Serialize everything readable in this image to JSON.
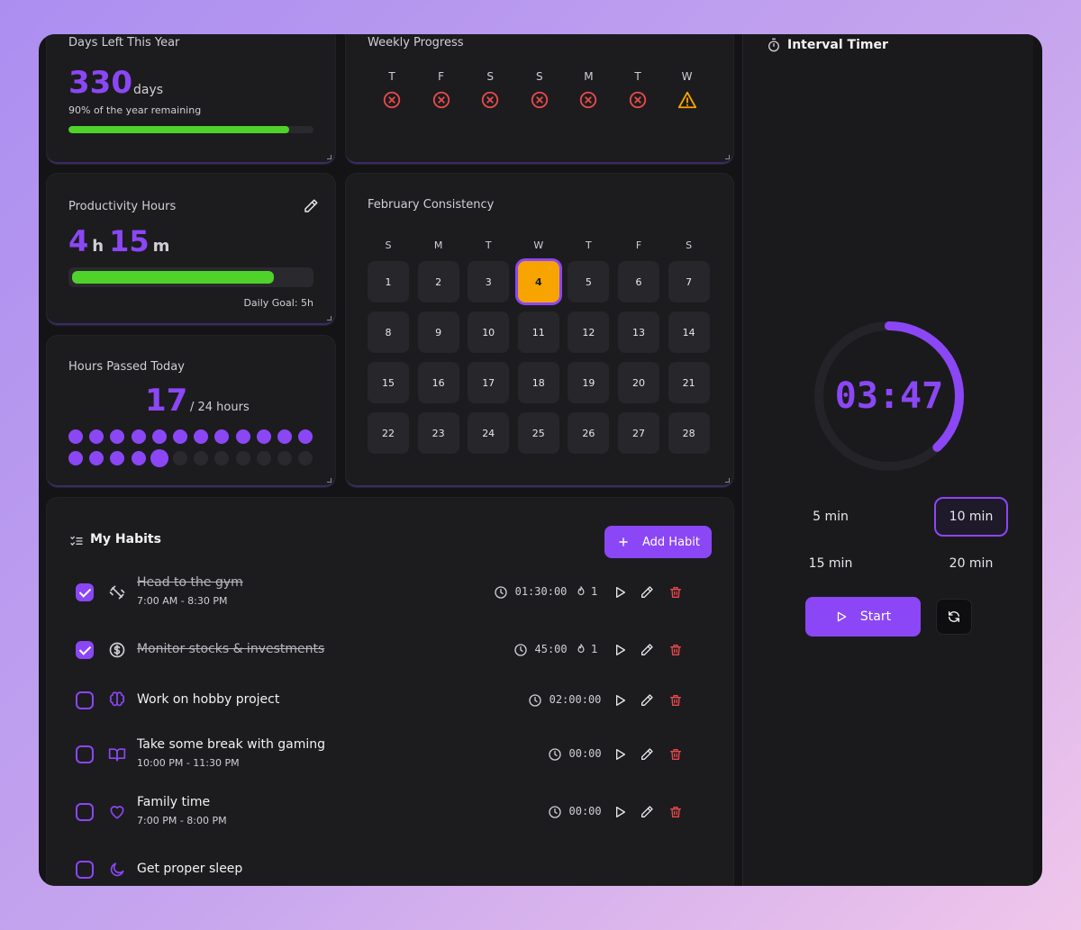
{
  "days_left": {
    "title": "Days Left This Year",
    "value": "330",
    "unit": "days",
    "subtitle": "90% of the year remaining",
    "progress_fraction": 0.9
  },
  "weekly": {
    "title": "Weekly Progress",
    "days": [
      {
        "label": "T",
        "status": "missed"
      },
      {
        "label": "F",
        "status": "missed"
      },
      {
        "label": "S",
        "status": "missed"
      },
      {
        "label": "S",
        "status": "missed"
      },
      {
        "label": "M",
        "status": "missed"
      },
      {
        "label": "T",
        "status": "missed"
      },
      {
        "label": "W",
        "status": "warning"
      }
    ],
    "missed_color": "#e84a4a",
    "warning_color": "#f7a400"
  },
  "productivity": {
    "title": "Productivity Hours",
    "hours": "4",
    "hours_unit": "h",
    "minutes": "15",
    "minutes_unit": "m",
    "goal": "Daily Goal: 5h",
    "progress_fraction": 0.85
  },
  "hours_passed": {
    "title": "Hours Passed Today",
    "value": "17",
    "of": "/ 24 hours",
    "passed": 17,
    "total": 24
  },
  "calendar": {
    "title": "February Consistency",
    "weekdays": [
      "S",
      "M",
      "T",
      "W",
      "T",
      "F",
      "S"
    ],
    "days": [
      "1",
      "2",
      "3",
      "4",
      "5",
      "6",
      "7",
      "8",
      "9",
      "10",
      "11",
      "12",
      "13",
      "14",
      "15",
      "16",
      "17",
      "18",
      "19",
      "20",
      "21",
      "22",
      "23",
      "24",
      "25",
      "26",
      "27",
      "28"
    ],
    "today": "4"
  },
  "habits": {
    "title": "My Habits",
    "add_label": "Add Habit",
    "items": [
      {
        "title": "Head to the gym",
        "time": "7:00 AM - 8:30 PM",
        "duration": "01:30:00",
        "streak": "1",
        "done": true,
        "icon": "dumbbell-icon"
      },
      {
        "title": "Monitor stocks & investments",
        "time": "",
        "duration": "45:00",
        "streak": "1",
        "done": true,
        "icon": "dollar-icon"
      },
      {
        "title": "Work on hobby project",
        "time": "",
        "duration": "02:00:00",
        "streak": "",
        "done": false,
        "icon": "brain-icon"
      },
      {
        "title": "Take some break with gaming",
        "time": "10:00 PM - 11:30 PM",
        "duration": "00:00",
        "streak": "",
        "done": false,
        "icon": "book-icon"
      },
      {
        "title": "Family time",
        "time": "7:00 PM - 8:00 PM",
        "duration": "00:00",
        "streak": "",
        "done": false,
        "icon": "heart-icon"
      },
      {
        "title": "Get proper sleep",
        "time": "",
        "duration": "",
        "streak": "",
        "done": false,
        "icon": "moon-icon"
      }
    ]
  },
  "timer": {
    "title": "Interval Timer",
    "readout": "03:47",
    "remaining_fraction": 0.38,
    "presets": [
      "5 min",
      "10 min",
      "15 min",
      "20 min"
    ],
    "selected_preset": "10 min",
    "start_label": "Start"
  },
  "colors": {
    "accent": "#8b47f5",
    "success": "#4fd32b",
    "today": "#f7a400",
    "danger": "#e84a4a"
  }
}
